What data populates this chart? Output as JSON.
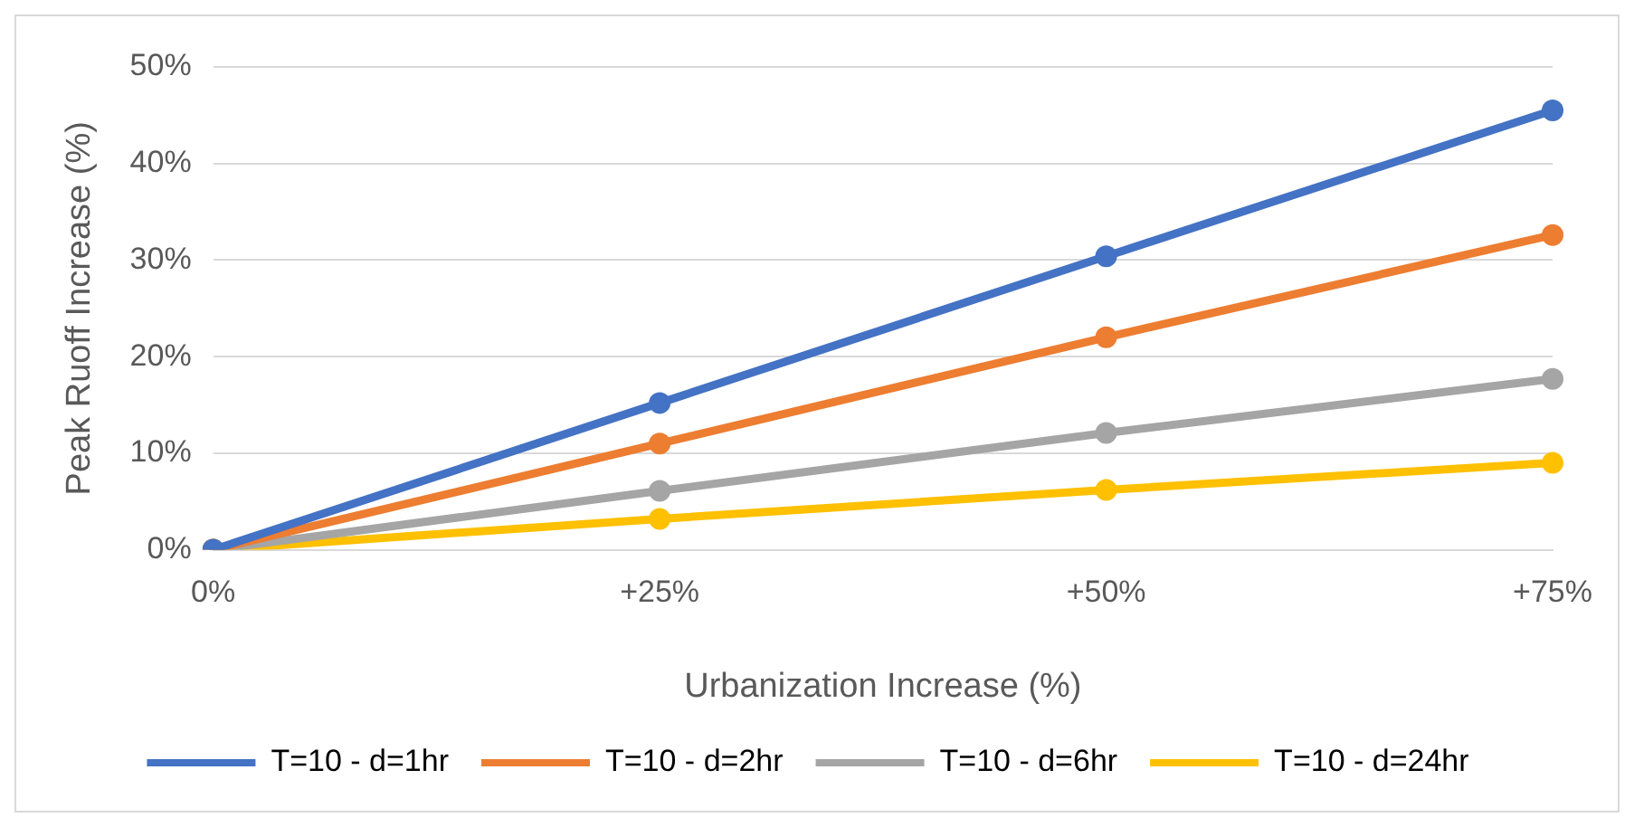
{
  "chart_data": {
    "type": "line",
    "xlabel": "Urbanization Increase (%)",
    "ylabel": "Peak Ruoff Increase (%)",
    "categories": [
      "0%",
      "+25%",
      "+50%",
      "+75%"
    ],
    "series": [
      {
        "name": "T=10 - d=1hr",
        "color": "#4472c4",
        "values": [
          0,
          15.2,
          30.4,
          45.5
        ]
      },
      {
        "name": "T=10 - d=2hr",
        "color": "#ed7d31",
        "values": [
          0,
          11,
          22,
          32.6
        ]
      },
      {
        "name": "T=10 - d=6hr",
        "color": "#a5a5a5",
        "values": [
          0,
          6.1,
          12.1,
          17.7
        ]
      },
      {
        "name": "T=10 - d=24hr",
        "color": "#ffc000",
        "values": [
          0,
          3.2,
          6.2,
          9
        ]
      }
    ],
    "ylim": [
      0,
      50
    ],
    "yticks": [
      {
        "value": 0,
        "label": "0%"
      },
      {
        "value": 10,
        "label": "10%"
      },
      {
        "value": 20,
        "label": "20%"
      },
      {
        "value": 30,
        "label": "30%"
      },
      {
        "value": 40,
        "label": "40%"
      },
      {
        "value": 50,
        "label": "50%"
      }
    ],
    "grid": "y",
    "legend": "bottom",
    "marker": "circle",
    "line_style": "solid"
  }
}
